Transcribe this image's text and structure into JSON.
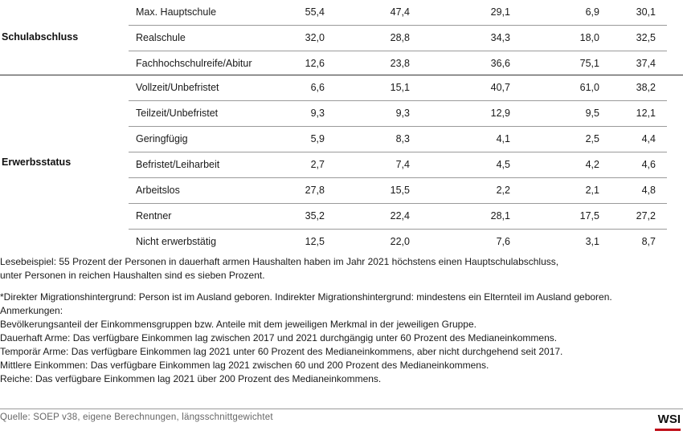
{
  "groups": [
    {
      "label": "Schulabschluss",
      "rows": [
        {
          "category": "Max. Hauptschule",
          "values": [
            "55,4",
            "47,4",
            "29,1",
            "6,9",
            "30,1"
          ]
        },
        {
          "category": "Realschule",
          "values": [
            "32,0",
            "28,8",
            "34,3",
            "18,0",
            "32,5"
          ]
        },
        {
          "category": "Fachhochschulreife/Abitur",
          "values": [
            "12,6",
            "23,8",
            "36,6",
            "75,1",
            "37,4"
          ]
        }
      ]
    },
    {
      "label": "Erwerbsstatus",
      "rows": [
        {
          "category": "Vollzeit/Unbefristet",
          "values": [
            "6,6",
            "15,1",
            "40,7",
            "61,0",
            "38,2"
          ]
        },
        {
          "category": "Teilzeit/Unbefristet",
          "values": [
            "9,3",
            "9,3",
            "12,9",
            "9,5",
            "12,1"
          ]
        },
        {
          "category": "Geringfügig",
          "values": [
            "5,9",
            "8,3",
            "4,1",
            "2,5",
            "4,4"
          ]
        },
        {
          "category": "Befristet/Leiharbeit",
          "values": [
            "2,7",
            "7,4",
            "4,5",
            "4,2",
            "4,6"
          ]
        },
        {
          "category": "Arbeitslos",
          "values": [
            "27,8",
            "15,5",
            "2,2",
            "2,1",
            "4,8"
          ]
        },
        {
          "category": "Rentner",
          "values": [
            "35,2",
            "22,4",
            "28,1",
            "17,5",
            "27,2"
          ]
        },
        {
          "category": "Nicht erwerbstätig",
          "values": [
            "12,5",
            "22,0",
            "7,6",
            "3,1",
            "8,7"
          ]
        }
      ]
    }
  ],
  "notes": {
    "reading_example": [
      "Lesebeispiel: 55 Prozent der Personen in dauerhaft armen Haushalten haben im Jahr 2021 höchstens einen Hauptschulabschluss,",
      "unter Personen in reichen Haushalten sind es sieben Prozent."
    ],
    "migration": "*Direkter Migrationshintergrund: Person ist im Ausland geboren. Indirekter Migrationshintergrund: mindestens ein Elternteil im Ausland geboren.",
    "remarks_heading": "Anmerkungen:",
    "remarks": [
      "Bevölkerungsanteil der Einkommensgruppen bzw. Anteile mit dem jeweiligen Merkmal in der jeweiligen Gruppe.",
      "Dauerhaft Arme: Das verfügbare Einkommen lag zwischen 2017 und 2021 durchgängig unter 60 Prozent des Medianeinkommens.",
      "Temporär Arme: Das verfügbare Einkommen lag 2021 unter 60 Prozent des Medianeinkommens, aber nicht durchgehend seit 2017.",
      "Mittlere Einkommen: Das verfügbare Einkommen lag 2021 zwischen 60 und 200 Prozent des Medianeinkommens.",
      "Reiche: Das verfügbare Einkommen lag 2021 über 200 Prozent des Medianeinkommens."
    ]
  },
  "source": "Quelle: SOEP v38, eigene Berechnungen, längsschnittgewichtet",
  "logo": "WSI",
  "colors": {
    "logo_accent": "#c0101a",
    "source_text": "#666666"
  }
}
